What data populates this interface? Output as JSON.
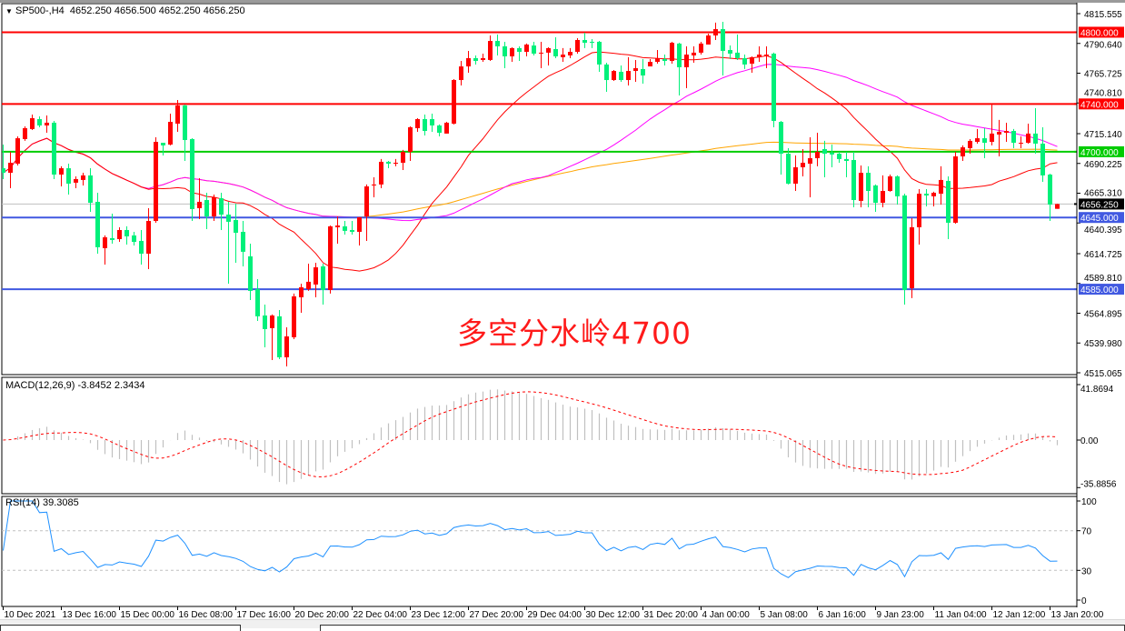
{
  "header": {
    "menu_icon": "triangle-down-icon",
    "symbol": "SP500-,H4",
    "ohlc": "4652.250 4656.500 4652.250 4656.250"
  },
  "annotation": "多空分水岭4700",
  "macd_title": "MACD(12,26,9) -3.8452 2.3434",
  "rsi_title": "RSI(14) 39.3085",
  "colors": {
    "bull": "#ff0000",
    "bear": "#00f07a",
    "ma_fast": "#ff0000",
    "ma_mid": "#ff00ff",
    "ma_slow": "#ffa500",
    "macd_hist": "#c0c0c0",
    "macd_signal": "#ff0000",
    "rsi_line": "#1e90ff"
  },
  "chart_data": {
    "type": "candlestick",
    "timeframe": "H4",
    "ylim": [
      4515.065,
      4815.555
    ],
    "price_ticks": [
      "4815.555",
      "4790.640",
      "4765.725",
      "4740.810",
      "4715.140",
      "4690.225",
      "4665.310",
      "4640.395",
      "4614.725",
      "4589.810",
      "4564.895",
      "4539.980",
      "4515.065"
    ],
    "time_labels": [
      "10 Dec 2021",
      "13 Dec 16:00",
      "15 Dec 00:00",
      "16 Dec 08:00",
      "17 Dec 16:00",
      "20 Dec 20:00",
      "22 Dec 04:00",
      "23 Dec 12:00",
      "27 Dec 20:00",
      "29 Dec 04:00",
      "30 Dec 12:00",
      "31 Dec 20:00",
      "4 Jan 00:00",
      "5 Jan 08:00",
      "6 Jan 16:00",
      "9 Jan 23:00",
      "11 Jan 04:00",
      "12 Jan 12:00",
      "13 Jan 20:00"
    ],
    "levels": [
      {
        "price": 4800,
        "label": "4800.000",
        "color": "#ff0000"
      },
      {
        "price": 4740,
        "label": "4740.000",
        "color": "#ff0000"
      },
      {
        "price": 4700,
        "label": "4700.000",
        "color": "#00cc00"
      },
      {
        "price": 4645,
        "label": "4645.000",
        "color": "#4159e1"
      },
      {
        "price": 4585,
        "label": "4585.000",
        "color": "#4159e1"
      }
    ],
    "current_price": {
      "price": 4656.25,
      "label": "4656.250"
    },
    "macd_axis": {
      "labels": [
        "41.8694",
        "0.00",
        "-35.8856"
      ],
      "values": [
        41.8694,
        0,
        -35.8856
      ]
    },
    "rsi_axis": {
      "labels": [
        "100",
        "70",
        "30",
        "0"
      ],
      "values": [
        100,
        70,
        30,
        0
      ]
    },
    "ohlc_fields": [
      "open",
      "high",
      "low",
      "close"
    ],
    "candles": [
      [
        4686.2,
        4706.0,
        4677.1,
        4682.4
      ],
      [
        4682.4,
        4699.9,
        4669.5,
        4690.8
      ],
      [
        4690.0,
        4712.9,
        4688.5,
        4711.3
      ],
      [
        4710.6,
        4721.2,
        4709.1,
        4719.7
      ],
      [
        4719.0,
        4731.1,
        4718.2,
        4728.1
      ],
      [
        4727.3,
        4729.6,
        4720.5,
        4722.0
      ],
      [
        4722.0,
        4730.4,
        4715.9,
        4724.3
      ],
      [
        4724.3,
        4725.8,
        4677.1,
        4680.9
      ],
      [
        4680.9,
        4687.8,
        4671.0,
        4686.2
      ],
      [
        4686.2,
        4690.0,
        4664.2,
        4673.3
      ],
      [
        4674.1,
        4679.4,
        4669.5,
        4677.1
      ],
      [
        4676.4,
        4682.4,
        4671.8,
        4680.2
      ],
      [
        4680.2,
        4686.2,
        4649.7,
        4657.3
      ],
      [
        4658.1,
        4665.7,
        4614.7,
        4620.1
      ],
      [
        4619.3,
        4630.0,
        4605.6,
        4628.4
      ],
      [
        4627.7,
        4648.2,
        4623.1,
        4626.2
      ],
      [
        4626.9,
        4636.8,
        4624.6,
        4634.5
      ],
      [
        4634.5,
        4637.6,
        4622.3,
        4629.2
      ],
      [
        4630.0,
        4633.0,
        4621.6,
        4624.6
      ],
      [
        4625.4,
        4634.5,
        4605.6,
        4614.7
      ],
      [
        4614.7,
        4652.8,
        4601.8,
        4642.1
      ],
      [
        4642.1,
        4712.1,
        4640.6,
        4708.3
      ],
      [
        4707.5,
        4707.5,
        4696.9,
        4705.3
      ],
      [
        4706.0,
        4731.9,
        4705.3,
        4725.0
      ],
      [
        4723.5,
        4743.3,
        4716.7,
        4738.7
      ],
      [
        4738.7,
        4739.5,
        4692.3,
        4709.8
      ],
      [
        4710.6,
        4711.3,
        4642.1,
        4652.0
      ],
      [
        4652.8,
        4677.9,
        4643.6,
        4658.1
      ],
      [
        4659.6,
        4665.7,
        4635.3,
        4645.9
      ],
      [
        4645.9,
        4664.2,
        4642.1,
        4661.9
      ],
      [
        4661.1,
        4665.7,
        4634.5,
        4647.4
      ],
      [
        4647.4,
        4658.1,
        4589.6,
        4641.4
      ],
      [
        4642.9,
        4656.6,
        4607.1,
        4632.2
      ],
      [
        4633.0,
        4642.1,
        4604.1,
        4616.3
      ],
      [
        4612.5,
        4623.1,
        4575.9,
        4583.6
      ],
      [
        4585.1,
        4593.4,
        4558.4,
        4562.3
      ],
      [
        4563.0,
        4572.1,
        4536.4,
        4551.6
      ],
      [
        4552.4,
        4563.8,
        4525.7,
        4563.0
      ],
      [
        4562.3,
        4567.6,
        4526.5,
        4528.0
      ],
      [
        4528.0,
        4553.1,
        4520.4,
        4545.5
      ],
      [
        4544.8,
        4581.3,
        4543.2,
        4579.0
      ],
      [
        4578.2,
        4589.6,
        4565.3,
        4586.6
      ],
      [
        4585.1,
        4606.4,
        4583.6,
        4591.2
      ],
      [
        4588.9,
        4607.1,
        4578.2,
        4603.3
      ],
      [
        4604.1,
        4606.4,
        4572.1,
        4584.3
      ],
      [
        4584.3,
        4638.3,
        4581.3,
        4637.6
      ],
      [
        4636.8,
        4645.9,
        4623.1,
        4638.3
      ],
      [
        4637.6,
        4642.1,
        4630.7,
        4633.8
      ],
      [
        4634.5,
        4642.1,
        4630.7,
        4633.0
      ],
      [
        4633.0,
        4645.2,
        4621.6,
        4645.2
      ],
      [
        4645.9,
        4672.6,
        4625.4,
        4671.0
      ],
      [
        4671.8,
        4678.6,
        4661.9,
        4672.6
      ],
      [
        4672.6,
        4693.9,
        4669.5,
        4691.6
      ],
      [
        4691.6,
        4692.3,
        4686.2,
        4690.0
      ],
      [
        4690.0,
        4693.9,
        4687.8,
        4690.8
      ],
      [
        4690.8,
        4701.5,
        4684.7,
        4699.9
      ],
      [
        4699.9,
        4721.2,
        4692.3,
        4720.5
      ],
      [
        4719.7,
        4728.1,
        4716.7,
        4727.3
      ],
      [
        4727.3,
        4731.1,
        4713.6,
        4717.4
      ],
      [
        4727.3,
        4731.9,
        4716.7,
        4722.0
      ],
      [
        4722.0,
        4722.8,
        4712.9,
        4715.9
      ],
      [
        4715.2,
        4725.0,
        4715.2,
        4724.3
      ],
      [
        4723.5,
        4760.8,
        4722.8,
        4760.0
      ],
      [
        4760.0,
        4776.0,
        4755.5,
        4771.4
      ],
      [
        4771.4,
        4784.4,
        4766.1,
        4778.3
      ],
      [
        4778.3,
        4780.6,
        4773.0,
        4776.0
      ],
      [
        4776.8,
        4782.1,
        4775.2,
        4778.3
      ],
      [
        4776.8,
        4797.3,
        4776.0,
        4792.7
      ],
      [
        4792.7,
        4798.1,
        4780.6,
        4788.2
      ],
      [
        4788.2,
        4792.0,
        4769.9,
        4779.8
      ],
      [
        4779.8,
        4787.4,
        4775.2,
        4786.7
      ],
      [
        4786.7,
        4788.2,
        4776.0,
        4783.6
      ],
      [
        4783.6,
        4790.5,
        4779.8,
        4789.7
      ],
      [
        4788.9,
        4792.0,
        4780.6,
        4782.1
      ],
      [
        4782.9,
        4792.0,
        4769.9,
        4782.9
      ],
      [
        4782.9,
        4787.4,
        4772.2,
        4786.7
      ],
      [
        4785.9,
        4795.8,
        4778.3,
        4779.8
      ],
      [
        4779.1,
        4786.7,
        4775.2,
        4781.3
      ],
      [
        4780.6,
        4786.7,
        4778.3,
        4783.6
      ],
      [
        4783.6,
        4795.0,
        4782.1,
        4793.5
      ],
      [
        4793.5,
        4799.6,
        4786.7,
        4791.2
      ],
      [
        4792.0,
        4794.3,
        4786.7,
        4791.2
      ],
      [
        4792.0,
        4792.7,
        4766.9,
        4773.0
      ],
      [
        4773.0,
        4774.5,
        4750.1,
        4760.0
      ],
      [
        4760.0,
        4768.4,
        4759.3,
        4767.6
      ],
      [
        4766.9,
        4772.2,
        4758.5,
        4760.0
      ],
      [
        4760.0,
        4779.1,
        4755.5,
        4767.6
      ],
      [
        4767.6,
        4776.8,
        4758.5,
        4769.9
      ],
      [
        4769.2,
        4777.5,
        4757.0,
        4763.8
      ],
      [
        4771.4,
        4777.5,
        4771.4,
        4775.2
      ],
      [
        4775.2,
        4785.1,
        4773.7,
        4778.3
      ],
      [
        4777.5,
        4781.3,
        4772.2,
        4776.0
      ],
      [
        4776.0,
        4792.0,
        4773.7,
        4791.2
      ],
      [
        4790.5,
        4791.2,
        4747.1,
        4770.7
      ],
      [
        4770.7,
        4788.2,
        4753.2,
        4781.3
      ],
      [
        4780.6,
        4788.2,
        4774.5,
        4782.9
      ],
      [
        4782.9,
        4792.0,
        4781.3,
        4790.5
      ],
      [
        4789.7,
        4798.8,
        4789.7,
        4797.3
      ],
      [
        4797.3,
        4808.0,
        4793.5,
        4802.6
      ],
      [
        4802.6,
        4808.7,
        4763.8,
        4784.4
      ],
      [
        4785.1,
        4788.9,
        4777.5,
        4782.1
      ],
      [
        4782.9,
        4798.1,
        4776.8,
        4778.3
      ],
      [
        4778.3,
        4781.3,
        4769.2,
        4773.0
      ],
      [
        4773.7,
        4779.8,
        4766.1,
        4779.1
      ],
      [
        4779.1,
        4788.2,
        4775.2,
        4781.3
      ],
      [
        4779.8,
        4788.2,
        4769.9,
        4781.3
      ],
      [
        4782.1,
        4782.9,
        4720.5,
        4725.8
      ],
      [
        4725.0,
        4725.8,
        4680.9,
        4698.4
      ],
      [
        4698.4,
        4703.0,
        4672.6,
        4673.3
      ],
      [
        4673.3,
        4696.9,
        4667.2,
        4687.0
      ],
      [
        4687.0,
        4702.2,
        4679.4,
        4690.8
      ],
      [
        4690.0,
        4712.1,
        4661.9,
        4694.6
      ],
      [
        4694.6,
        4715.9,
        4687.8,
        4699.9
      ],
      [
        4702.2,
        4709.1,
        4678.6,
        4698.4
      ],
      [
        4699.2,
        4706.0,
        4687.0,
        4697.7
      ],
      [
        4698.4,
        4699.9,
        4690.8,
        4693.9
      ],
      [
        4693.9,
        4699.9,
        4678.6,
        4692.3
      ],
      [
        4693.1,
        4699.9,
        4653.5,
        4659.6
      ],
      [
        4658.9,
        4688.5,
        4653.5,
        4682.4
      ],
      [
        4682.4,
        4687.8,
        4653.5,
        4667.2
      ],
      [
        4671.8,
        4672.6,
        4649.7,
        4657.3
      ],
      [
        4657.3,
        4680.2,
        4653.5,
        4667.2
      ],
      [
        4667.2,
        4680.9,
        4666.5,
        4679.4
      ],
      [
        4679.4,
        4680.2,
        4655.8,
        4662.7
      ],
      [
        4663.4,
        4664.9,
        4572.1,
        4584.3
      ],
      [
        4585.8,
        4644.4,
        4577.5,
        4636.8
      ],
      [
        4636.8,
        4668.7,
        4622.3,
        4664.9
      ],
      [
        4664.9,
        4668.7,
        4654.3,
        4663.4
      ],
      [
        4662.7,
        4666.5,
        4654.3,
        4665.7
      ],
      [
        4664.9,
        4687.8,
        4655.8,
        4676.4
      ],
      [
        4675.6,
        4679.4,
        4626.9,
        4640.6
      ],
      [
        4640.6,
        4699.9,
        4639.8,
        4696.1
      ],
      [
        4696.1,
        4705.3,
        4692.3,
        4703.7
      ],
      [
        4703.0,
        4710.6,
        4698.4,
        4709.1
      ],
      [
        4708.3,
        4719.0,
        4706.8,
        4711.3
      ],
      [
        4711.3,
        4719.7,
        4694.6,
        4707.5
      ],
      [
        4708.3,
        4740.2,
        4705.3,
        4715.2
      ],
      [
        4714.4,
        4726.6,
        4696.1,
        4716.7
      ],
      [
        4715.9,
        4724.3,
        4708.3,
        4717.4
      ],
      [
        4717.4,
        4719.0,
        4703.0,
        4707.5
      ],
      [
        4707.5,
        4712.9,
        4703.0,
        4707.5
      ],
      [
        4707.5,
        4723.5,
        4706.8,
        4715.2
      ],
      [
        4715.2,
        4736.4,
        4698.4,
        4706.8
      ],
      [
        4706.8,
        4720.5,
        4674.8,
        4680.2
      ],
      [
        4680.9,
        4681.6,
        4642.1,
        4655.8
      ],
      [
        4652.25,
        4656.5,
        4652.25,
        4656.25
      ]
    ]
  }
}
